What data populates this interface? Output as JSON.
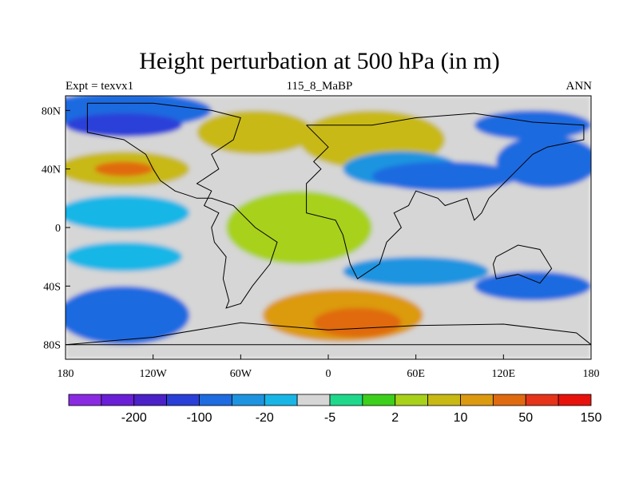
{
  "chart_data": {
    "type": "heatmap",
    "title": "Height perturbation at 500 hPa (in m)",
    "subtitle_left": "Expt = texvx1",
    "subtitle_center": "115_8_MaBP",
    "subtitle_right": "ANN",
    "xlim": [
      -180,
      180
    ],
    "ylim": [
      -90,
      90
    ],
    "x_ticks": [
      {
        "value": -180,
        "label": "180"
      },
      {
        "value": -120,
        "label": "120W"
      },
      {
        "value": -60,
        "label": "60W"
      },
      {
        "value": 0,
        "label": "0"
      },
      {
        "value": 60,
        "label": "60E"
      },
      {
        "value": 120,
        "label": "120E"
      },
      {
        "value": 180,
        "label": "180"
      }
    ],
    "y_ticks": [
      {
        "value": 80,
        "label": "80N"
      },
      {
        "value": 40,
        "label": "40N"
      },
      {
        "value": 0,
        "label": "0"
      },
      {
        "value": -40,
        "label": "40S"
      },
      {
        "value": -80,
        "label": "80S"
      }
    ],
    "colorbar": {
      "colors": [
        "#8a2be2",
        "#6a1fd6",
        "#4a22c8",
        "#2a3fd8",
        "#1f6be0",
        "#1e94e0",
        "#18b6e6",
        "#d6d6d6",
        "#1fd88a",
        "#3ccf1c",
        "#a8d11a",
        "#c8b914",
        "#dc9a10",
        "#e06a10",
        "#e5341a",
        "#e8120c"
      ],
      "labels": [
        {
          "after_index": 1,
          "text": "-200"
        },
        {
          "after_index": 3,
          "text": "-100"
        },
        {
          "after_index": 5,
          "text": "-20"
        },
        {
          "after_index": 7,
          "text": "-5"
        },
        {
          "after_index": 9,
          "text": "2"
        },
        {
          "after_index": 11,
          "text": "10"
        },
        {
          "after_index": 13,
          "text": "50"
        },
        {
          "after_index": 15,
          "text": "150"
        }
      ]
    },
    "field_regions": [
      {
        "lon": 0,
        "lat": 0,
        "rx": 360,
        "ry": 180,
        "level": 7
      },
      {
        "lon": -140,
        "lat": 80,
        "rx": 60,
        "ry": 12,
        "level": 4
      },
      {
        "lon": -140,
        "lat": 70,
        "rx": 40,
        "ry": 8,
        "level": 3
      },
      {
        "lon": -140,
        "lat": 40,
        "rx": 45,
        "ry": 12,
        "level": 11
      },
      {
        "lon": -140,
        "lat": 40,
        "rx": 20,
        "ry": 5,
        "level": 13
      },
      {
        "lon": -50,
        "lat": 65,
        "rx": 40,
        "ry": 15,
        "level": 11
      },
      {
        "lon": 30,
        "lat": 60,
        "rx": 50,
        "ry": 20,
        "level": 11
      },
      {
        "lon": 50,
        "lat": 40,
        "rx": 40,
        "ry": 12,
        "level": 5
      },
      {
        "lon": 80,
        "lat": 35,
        "rx": 50,
        "ry": 10,
        "level": 4
      },
      {
        "lon": 150,
        "lat": 45,
        "rx": 35,
        "ry": 18,
        "level": 4
      },
      {
        "lon": 140,
        "lat": 70,
        "rx": 40,
        "ry": 10,
        "level": 4
      },
      {
        "lon": -140,
        "lat": 10,
        "rx": 45,
        "ry": 12,
        "level": 6
      },
      {
        "lon": -20,
        "lat": 0,
        "rx": 50,
        "ry": 25,
        "level": 10
      },
      {
        "lon": -140,
        "lat": -20,
        "rx": 40,
        "ry": 10,
        "level": 6
      },
      {
        "lon": -140,
        "lat": -60,
        "rx": 45,
        "ry": 20,
        "level": 4
      },
      {
        "lon": 10,
        "lat": -60,
        "rx": 55,
        "ry": 18,
        "level": 12
      },
      {
        "lon": 20,
        "lat": -65,
        "rx": 30,
        "ry": 10,
        "level": 13
      },
      {
        "lon": 60,
        "lat": -30,
        "rx": 50,
        "ry": 10,
        "level": 5
      },
      {
        "lon": 140,
        "lat": -40,
        "rx": 40,
        "ry": 10,
        "level": 4
      }
    ],
    "coastlines": [
      [
        [
          -165,
          85
        ],
        [
          -120,
          85
        ],
        [
          -80,
          80
        ],
        [
          -60,
          75
        ],
        [
          -65,
          60
        ],
        [
          -80,
          50
        ],
        [
          -75,
          40
        ],
        [
          -90,
          30
        ],
        [
          -80,
          25
        ],
        [
          -85,
          15
        ],
        [
          -75,
          10
        ],
        [
          -80,
          0
        ],
        [
          -78,
          -10
        ],
        [
          -70,
          -20
        ],
        [
          -72,
          -35
        ],
        [
          -68,
          -50
        ],
        [
          -70,
          -55
        ],
        [
          -60,
          -52
        ],
        [
          -52,
          -40
        ],
        [
          -40,
          -25
        ],
        [
          -35,
          -10
        ],
        [
          -50,
          0
        ],
        [
          -60,
          10
        ],
        [
          -65,
          15
        ],
        [
          -80,
          20
        ],
        [
          -90,
          20
        ],
        [
          -105,
          25
        ],
        [
          -115,
          32
        ],
        [
          -120,
          40
        ],
        [
          -125,
          50
        ],
        [
          -140,
          60
        ],
        [
          -165,
          65
        ],
        [
          -165,
          85
        ]
      ],
      [
        [
          -15,
          70
        ],
        [
          10,
          70
        ],
        [
          30,
          70
        ],
        [
          60,
          75
        ],
        [
          100,
          78
        ],
        [
          140,
          72
        ],
        [
          175,
          70
        ],
        [
          175,
          60
        ],
        [
          150,
          55
        ],
        [
          140,
          50
        ],
        [
          130,
          40
        ],
        [
          120,
          30
        ],
        [
          110,
          20
        ],
        [
          105,
          10
        ],
        [
          100,
          5
        ],
        [
          95,
          20
        ],
        [
          80,
          15
        ],
        [
          75,
          20
        ],
        [
          60,
          25
        ],
        [
          55,
          15
        ],
        [
          45,
          10
        ],
        [
          50,
          0
        ],
        [
          40,
          -10
        ],
        [
          35,
          -25
        ],
        [
          20,
          -35
        ],
        [
          15,
          -25
        ],
        [
          10,
          -5
        ],
        [
          5,
          5
        ],
        [
          -15,
          10
        ],
        [
          -15,
          30
        ],
        [
          -5,
          40
        ],
        [
          -10,
          45
        ],
        [
          0,
          55
        ],
        [
          -15,
          70
        ]
      ],
      [
        [
          115,
          -20
        ],
        [
          130,
          -12
        ],
        [
          145,
          -15
        ],
        [
          153,
          -28
        ],
        [
          145,
          -38
        ],
        [
          130,
          -32
        ],
        [
          115,
          -35
        ],
        [
          113,
          -25
        ],
        [
          115,
          -20
        ]
      ],
      [
        [
          -60,
          -65
        ],
        [
          0,
          -70
        ],
        [
          60,
          -67
        ],
        [
          120,
          -66
        ],
        [
          170,
          -72
        ],
        [
          180,
          -80
        ],
        [
          -180,
          -80
        ],
        [
          -120,
          -75
        ],
        [
          -60,
          -65
        ]
      ]
    ]
  }
}
